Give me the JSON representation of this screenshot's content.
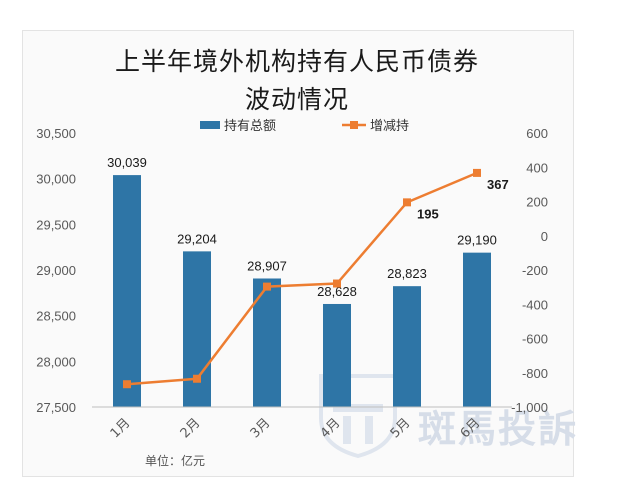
{
  "header": {
    "title_line1": "上半年境外机构持有人民币债券",
    "title_line2": "波动情况"
  },
  "footer": {
    "unit": "单位：亿元"
  },
  "watermark": {
    "text": "斑馬投訴"
  },
  "colors": {
    "bar": "#2e75a6",
    "line": "#ed7d31"
  },
  "chart_data": {
    "type": "bar",
    "categories": [
      "1月",
      "2月",
      "3月",
      "4月",
      "5月",
      "6月"
    ],
    "series": [
      {
        "name": "持有总额",
        "type": "bar",
        "axis": "left",
        "values": [
          30039,
          29204,
          28907,
          28628,
          28823,
          29190
        ],
        "labels": [
          "30,039",
          "29,204",
          "28,907",
          "28,628",
          "28,823",
          "29,190"
        ]
      },
      {
        "name": "增减持",
        "type": "line",
        "axis": "right",
        "values": [
          -867,
          -835,
          -297,
          -279,
          195,
          367
        ],
        "labels": [
          "",
          "",
          "",
          "",
          "195",
          "367"
        ]
      }
    ],
    "y_left": {
      "min": 27500,
      "max": 30500,
      "ticks": [
        27500,
        28000,
        28500,
        29000,
        29500,
        30000,
        30500
      ],
      "tick_labels": [
        "27,500",
        "28,000",
        "28,500",
        "29,000",
        "29,500",
        "30,000",
        "30,500"
      ]
    },
    "y_right": {
      "min": -1000,
      "max": 600,
      "ticks": [
        -1000,
        -800,
        -600,
        -400,
        -200,
        0,
        200,
        400,
        600
      ],
      "tick_labels": [
        "-1,000",
        "-800",
        "-600",
        "-400",
        "-200",
        "0",
        "200",
        "400",
        "600"
      ]
    },
    "legend_position": "top",
    "grid": false
  }
}
